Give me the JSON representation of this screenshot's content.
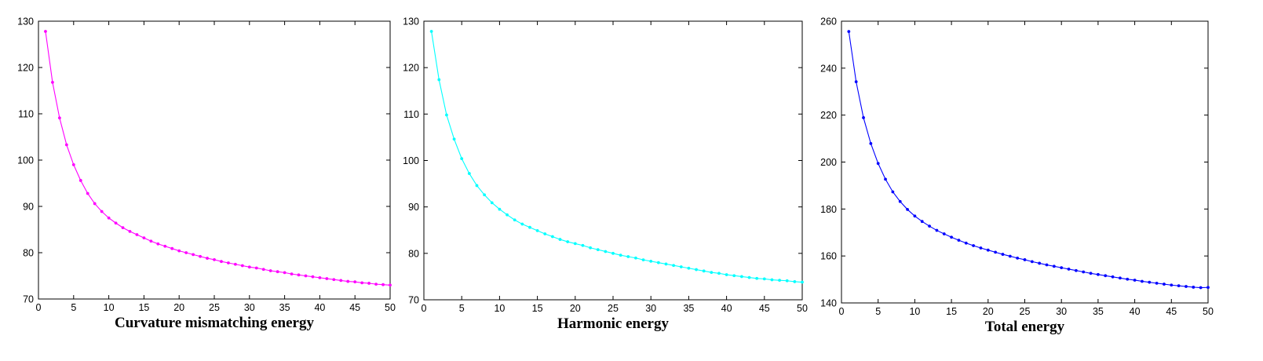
{
  "chart_data": [
    {
      "type": "line",
      "title": "",
      "xlabel": "Curvature mismatching energy",
      "ylabel": "",
      "xlim": [
        0,
        50
      ],
      "ylim": [
        70,
        130
      ],
      "xticks": [
        0,
        5,
        10,
        15,
        20,
        25,
        30,
        35,
        40,
        45,
        50
      ],
      "yticks": [
        70,
        80,
        90,
        100,
        110,
        120,
        130
      ],
      "grid": false,
      "marker": "point",
      "series": [
        {
          "color": "#ff00ff",
          "x": [
            1,
            2,
            3,
            4,
            5,
            6,
            7,
            8,
            9,
            10,
            11,
            12,
            13,
            14,
            15,
            16,
            17,
            18,
            19,
            20,
            21,
            22,
            23,
            24,
            25,
            26,
            27,
            28,
            29,
            30,
            31,
            32,
            33,
            34,
            35,
            36,
            37,
            38,
            39,
            40,
            41,
            42,
            43,
            44,
            45,
            46,
            47,
            48,
            49,
            50
          ],
          "y": [
            127.8,
            116.8,
            109.1,
            103.3,
            99.0,
            95.6,
            92.8,
            90.6,
            88.9,
            87.5,
            86.4,
            85.4,
            84.6,
            83.9,
            83.2,
            82.5,
            81.9,
            81.4,
            80.9,
            80.4,
            80.0,
            79.6,
            79.2,
            78.8,
            78.5,
            78.1,
            77.8,
            77.5,
            77.2,
            76.9,
            76.7,
            76.4,
            76.1,
            75.9,
            75.7,
            75.4,
            75.2,
            75.0,
            74.8,
            74.6,
            74.4,
            74.2,
            74.0,
            73.8,
            73.7,
            73.5,
            73.4,
            73.2,
            73.1,
            73.0
          ]
        }
      ]
    },
    {
      "type": "line",
      "title": "",
      "xlabel": "Harmonic energy",
      "ylabel": "",
      "xlim": [
        0,
        50
      ],
      "ylim": [
        70,
        130
      ],
      "xticks": [
        0,
        5,
        10,
        15,
        20,
        25,
        30,
        35,
        40,
        45,
        50
      ],
      "yticks": [
        70,
        80,
        90,
        100,
        110,
        120,
        130
      ],
      "grid": false,
      "marker": "point",
      "series": [
        {
          "color": "#00ffff",
          "x": [
            1,
            2,
            3,
            4,
            5,
            6,
            7,
            8,
            9,
            10,
            11,
            12,
            13,
            14,
            15,
            16,
            17,
            18,
            19,
            20,
            21,
            22,
            23,
            24,
            25,
            26,
            27,
            28,
            29,
            30,
            31,
            32,
            33,
            34,
            35,
            36,
            37,
            38,
            39,
            40,
            41,
            42,
            43,
            44,
            45,
            46,
            47,
            48,
            49,
            50
          ],
          "y": [
            127.8,
            117.4,
            109.8,
            104.6,
            100.4,
            97.2,
            94.6,
            92.6,
            90.9,
            89.5,
            88.3,
            87.2,
            86.3,
            85.6,
            84.9,
            84.2,
            83.6,
            83.0,
            82.5,
            82.1,
            81.7,
            81.2,
            80.8,
            80.4,
            80.0,
            79.6,
            79.3,
            79.0,
            78.6,
            78.3,
            78.0,
            77.7,
            77.4,
            77.1,
            76.8,
            76.5,
            76.2,
            75.9,
            75.7,
            75.4,
            75.2,
            75.0,
            74.8,
            74.6,
            74.5,
            74.3,
            74.2,
            74.1,
            73.9,
            73.8
          ]
        }
      ]
    },
    {
      "type": "line",
      "title": "",
      "xlabel": "Total energy",
      "ylabel": "",
      "xlim": [
        0,
        50
      ],
      "ylim": [
        140,
        260
      ],
      "xticks": [
        0,
        5,
        10,
        15,
        20,
        25,
        30,
        35,
        40,
        45,
        50
      ],
      "yticks": [
        140,
        160,
        180,
        200,
        220,
        240,
        260
      ],
      "grid": false,
      "marker": "point",
      "series": [
        {
          "color": "#0000ff",
          "x": [
            1,
            2,
            3,
            4,
            5,
            6,
            7,
            8,
            9,
            10,
            11,
            12,
            13,
            14,
            15,
            16,
            17,
            18,
            19,
            20,
            21,
            22,
            23,
            24,
            25,
            26,
            27,
            28,
            29,
            30,
            31,
            32,
            33,
            34,
            35,
            36,
            37,
            38,
            39,
            40,
            41,
            42,
            43,
            44,
            45,
            46,
            47,
            48,
            49,
            50
          ],
          "y": [
            255.6,
            234.2,
            218.9,
            207.9,
            199.4,
            192.7,
            187.3,
            183.2,
            179.8,
            177.0,
            174.7,
            172.7,
            170.9,
            169.4,
            168.0,
            166.7,
            165.5,
            164.4,
            163.4,
            162.5,
            161.6,
            160.7,
            159.9,
            159.1,
            158.4,
            157.6,
            156.9,
            156.2,
            155.6,
            155.0,
            154.4,
            153.8,
            153.2,
            152.6,
            152.1,
            151.6,
            151.1,
            150.6,
            150.1,
            149.7,
            149.2,
            148.8,
            148.4,
            148.0,
            147.6,
            147.3,
            147.0,
            146.7,
            146.5,
            146.6
          ]
        }
      ]
    }
  ]
}
